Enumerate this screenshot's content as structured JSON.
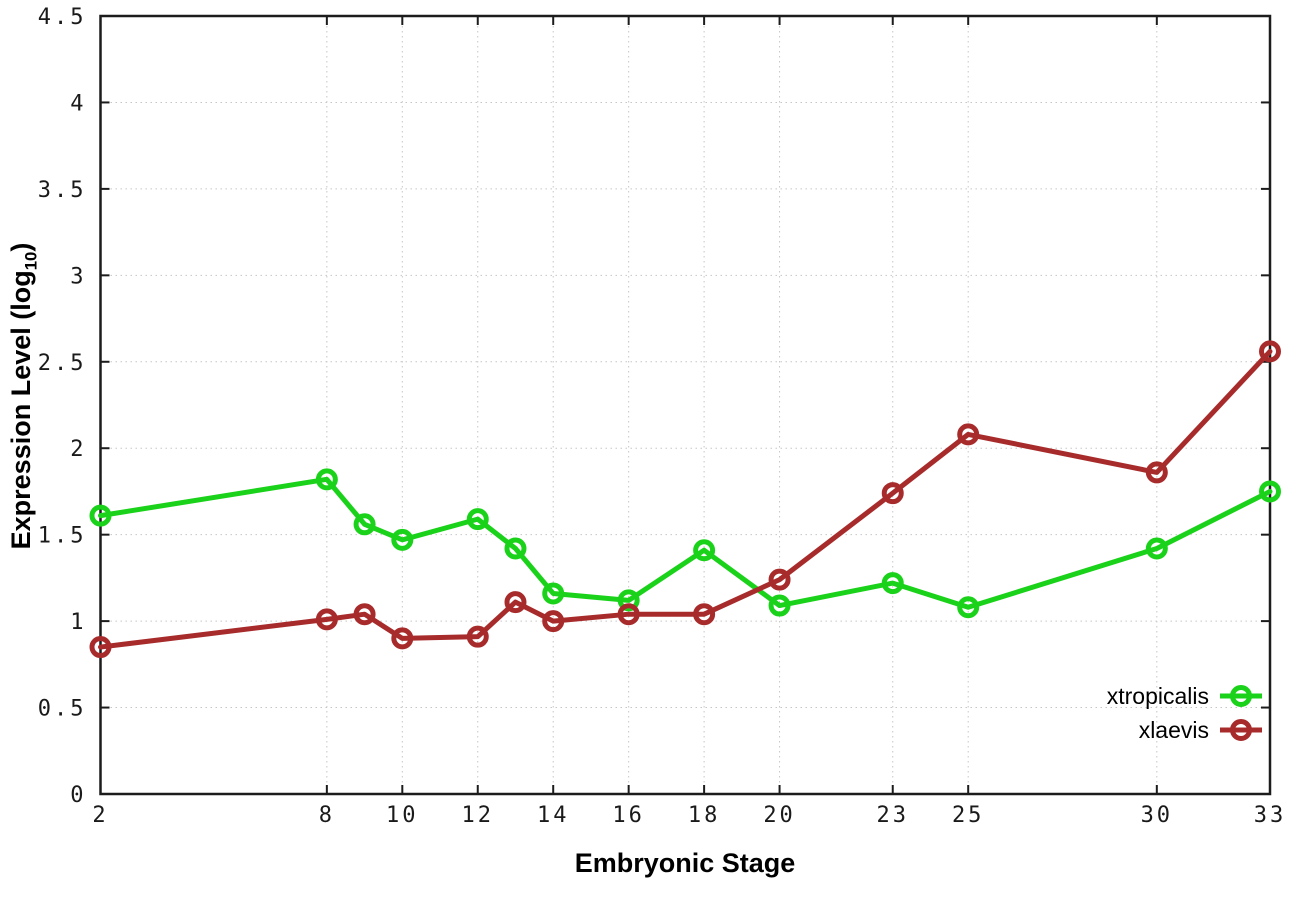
{
  "figure": {
    "background": "#ffffff",
    "border_color": "#1c1c1c",
    "grid_color": "#c6c6c6",
    "tick_label_color": "#1a1a1a",
    "text_color": "#000000"
  },
  "chart_data": {
    "type": "line",
    "title": "",
    "xlabel": "Embryonic Stage",
    "ylabel": "Expression Level (log10)",
    "ylabel_parts": {
      "prefix": "Expression Level (log",
      "sub": "10",
      "suffix": ")"
    },
    "x": [
      2,
      8,
      9,
      10,
      12,
      13,
      14,
      16,
      18,
      20,
      23,
      25,
      30,
      33
    ],
    "xticks": [
      2,
      8,
      10,
      12,
      14,
      16,
      18,
      20,
      23,
      25,
      30,
      33
    ],
    "yticks": [
      0,
      0.5,
      1,
      1.5,
      2,
      2.5,
      3,
      3.5,
      4,
      4.5
    ],
    "xlim": [
      2,
      33
    ],
    "ylim": [
      0,
      4.5
    ],
    "grid": true,
    "legend_position": "inside-bottom-right",
    "marker": "open-circle",
    "series": [
      {
        "name": "xtropicalis",
        "color": "#1ad21a",
        "values": [
          1.61,
          1.82,
          1.56,
          1.47,
          1.59,
          1.42,
          1.16,
          1.12,
          1.41,
          1.09,
          1.22,
          1.08,
          1.42,
          1.75
        ]
      },
      {
        "name": "xlaevis",
        "color": "#a82b2b",
        "values": [
          0.85,
          1.01,
          1.04,
          0.9,
          0.91,
          1.11,
          1.0,
          1.04,
          1.04,
          1.24,
          1.74,
          2.08,
          1.86,
          2.56
        ]
      }
    ]
  }
}
